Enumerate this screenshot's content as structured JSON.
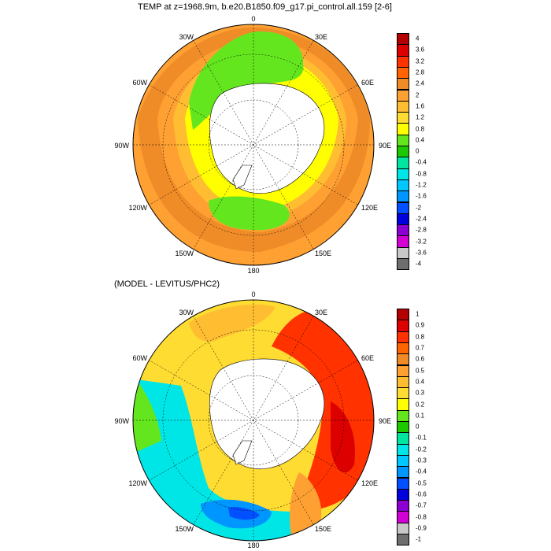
{
  "panels": [
    {
      "title": "TEMP at z=1968.9m, b.e20.B1850.f09_g17.pi_control.all.159 [2-6]",
      "colors": [
        "#6e6e6e",
        "#c8c8c8",
        "#d200d2",
        "#8c00d2",
        "#0000dc",
        "#0050ff",
        "#0096ff",
        "#00c8ff",
        "#00e6e6",
        "#00e6a0",
        "#1ec800",
        "#64e61e",
        "#ffff00",
        "#ffdc32",
        "#ffbe32",
        "#ffa032",
        "#f08c28",
        "#ff6400",
        "#ff3200",
        "#dc0000",
        "#b40000"
      ],
      "levels": [
        "4",
        "3.6",
        "3.2",
        "2.8",
        "2.4",
        "2",
        "1.6",
        "1.2",
        "0.8",
        "0.4",
        "0",
        "-0.4",
        "-0.8",
        "-1.2",
        "-1.6",
        "-2",
        "-2.4",
        "-2.8",
        "-3.2",
        "-3.6",
        "-4"
      ],
      "labels": {
        "l0": "0",
        "l30E": "30E",
        "l60E": "60E",
        "l90E": "90E",
        "l120E": "120E",
        "l150E": "150E",
        "l180": "180",
        "l150W": "150W",
        "l120W": "120W",
        "l90W": "90W",
        "l60W": "60W",
        "l30W": "30W"
      }
    },
    {
      "title": "(MODEL - LEVITUS/PHC2)",
      "colors": [
        "#6e6e6e",
        "#c8c8c8",
        "#d200d2",
        "#8c00d2",
        "#0000dc",
        "#0050ff",
        "#0096ff",
        "#00c8ff",
        "#00e6e6",
        "#00e6a0",
        "#1ec800",
        "#64e61e",
        "#ffff00",
        "#ffdc32",
        "#ffbe32",
        "#ffa032",
        "#f08c28",
        "#ff6400",
        "#ff3200",
        "#dc0000",
        "#b40000"
      ],
      "levels": [
        "1",
        "0.9",
        "0.8",
        "0.7",
        "0.6",
        "0.5",
        "0.4",
        "0.3",
        "0.2",
        "0.1",
        "0",
        "-0.1",
        "-0.2",
        "-0.3",
        "-0.4",
        "-0.5",
        "-0.6",
        "-0.7",
        "-0.8",
        "-0.9",
        "-1"
      ],
      "labels": {
        "l0": "0",
        "l30E": "30E",
        "l60E": "60E",
        "l90E": "90E",
        "l120E": "120E",
        "l150E": "150E",
        "l180": "180",
        "l150W": "150W",
        "l120W": "120W",
        "l90W": "90W",
        "l60W": "60W",
        "l30W": "30W"
      }
    }
  ]
}
